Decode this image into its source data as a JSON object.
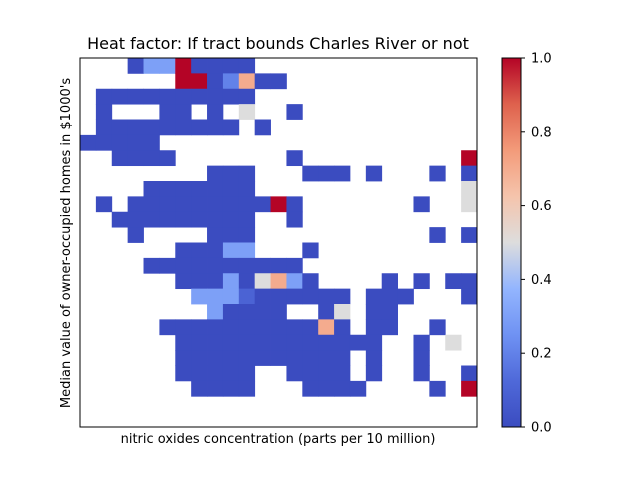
{
  "chart_data": {
    "type": "heatmap",
    "title": "Heat factor: If tract bounds Charles River or not",
    "xlabel": "nitric oxides concentration (parts per 10 million)",
    "ylabel": "Median value of owner-occupied homes in $1000's",
    "colormap": "coolwarm",
    "colormap_stops": [
      "#3b4cc0",
      "#dddddd",
      "#b40426"
    ],
    "vmin": 0.0,
    "vmax": 1.0,
    "colorbar_ticks": [
      "0.0",
      "0.2",
      "0.4",
      "0.6",
      "0.8",
      "1.0"
    ],
    "grid_cols": 25,
    "grid_rows": 24,
    "cells": [
      [
        3,
        0,
        0
      ],
      [
        4,
        0,
        0.3
      ],
      [
        5,
        0,
        0.3
      ],
      [
        6,
        0,
        1
      ],
      [
        7,
        0,
        0
      ],
      [
        8,
        0,
        0
      ],
      [
        9,
        0,
        0
      ],
      [
        10,
        0,
        0
      ],
      [
        6,
        1,
        1
      ],
      [
        7,
        1,
        1
      ],
      [
        8,
        1,
        0
      ],
      [
        9,
        1,
        0.2
      ],
      [
        10,
        1,
        0.7
      ],
      [
        11,
        1,
        0
      ],
      [
        12,
        1,
        0
      ],
      [
        1,
        2,
        0
      ],
      [
        2,
        2,
        0
      ],
      [
        3,
        2,
        0
      ],
      [
        4,
        2,
        0
      ],
      [
        5,
        2,
        0
      ],
      [
        6,
        2,
        0
      ],
      [
        7,
        2,
        0
      ],
      [
        8,
        2,
        0
      ],
      [
        9,
        2,
        0
      ],
      [
        10,
        2,
        0
      ],
      [
        1,
        3,
        0
      ],
      [
        5,
        3,
        0
      ],
      [
        6,
        3,
        0
      ],
      [
        8,
        3,
        0
      ],
      [
        10,
        3,
        0.5
      ],
      [
        13,
        3,
        0
      ],
      [
        1,
        4,
        0
      ],
      [
        2,
        4,
        0
      ],
      [
        3,
        4,
        0
      ],
      [
        4,
        4,
        0
      ],
      [
        5,
        4,
        0
      ],
      [
        6,
        4,
        0
      ],
      [
        7,
        4,
        0
      ],
      [
        8,
        4,
        0
      ],
      [
        9,
        4,
        0
      ],
      [
        11,
        4,
        0
      ],
      [
        0,
        5,
        0
      ],
      [
        1,
        5,
        0
      ],
      [
        2,
        5,
        0
      ],
      [
        3,
        5,
        0
      ],
      [
        4,
        5,
        0
      ],
      [
        2,
        6,
        0
      ],
      [
        3,
        6,
        0
      ],
      [
        4,
        6,
        0
      ],
      [
        5,
        6,
        0
      ],
      [
        13,
        6,
        0
      ],
      [
        24,
        6,
        1
      ],
      [
        8,
        7,
        0
      ],
      [
        9,
        7,
        0
      ],
      [
        10,
        7,
        0
      ],
      [
        14,
        7,
        0
      ],
      [
        15,
        7,
        0
      ],
      [
        16,
        7,
        0
      ],
      [
        18,
        7,
        0
      ],
      [
        22,
        7,
        0
      ],
      [
        24,
        7,
        0
      ],
      [
        4,
        8,
        0
      ],
      [
        5,
        8,
        0
      ],
      [
        6,
        8,
        0
      ],
      [
        7,
        8,
        0
      ],
      [
        8,
        8,
        0
      ],
      [
        9,
        8,
        0
      ],
      [
        10,
        8,
        0
      ],
      [
        24,
        8,
        0.5
      ],
      [
        1,
        9,
        0
      ],
      [
        3,
        9,
        0
      ],
      [
        4,
        9,
        0
      ],
      [
        5,
        9,
        0
      ],
      [
        6,
        9,
        0
      ],
      [
        7,
        9,
        0
      ],
      [
        8,
        9,
        0
      ],
      [
        9,
        9,
        0
      ],
      [
        10,
        9,
        0
      ],
      [
        11,
        9,
        0
      ],
      [
        12,
        9,
        1
      ],
      [
        13,
        9,
        0
      ],
      [
        21,
        9,
        0
      ],
      [
        24,
        9,
        0.5
      ],
      [
        2,
        10,
        0
      ],
      [
        3,
        10,
        0
      ],
      [
        4,
        10,
        0
      ],
      [
        5,
        10,
        0
      ],
      [
        6,
        10,
        0
      ],
      [
        7,
        10,
        0
      ],
      [
        8,
        10,
        0
      ],
      [
        9,
        10,
        0
      ],
      [
        10,
        10,
        0
      ],
      [
        13,
        10,
        0
      ],
      [
        3,
        11,
        0
      ],
      [
        8,
        11,
        0
      ],
      [
        9,
        11,
        0
      ],
      [
        10,
        11,
        0
      ],
      [
        22,
        11,
        0
      ],
      [
        24,
        11,
        0
      ],
      [
        6,
        12,
        0
      ],
      [
        7,
        12,
        0
      ],
      [
        8,
        12,
        0
      ],
      [
        9,
        12,
        0.3
      ],
      [
        10,
        12,
        0.3
      ],
      [
        14,
        12,
        0
      ],
      [
        4,
        13,
        0
      ],
      [
        5,
        13,
        0
      ],
      [
        6,
        13,
        0
      ],
      [
        7,
        13,
        0
      ],
      [
        8,
        13,
        0
      ],
      [
        9,
        13,
        0
      ],
      [
        10,
        13,
        0
      ],
      [
        11,
        13,
        0
      ],
      [
        12,
        13,
        0
      ],
      [
        13,
        13,
        0
      ],
      [
        6,
        14,
        0
      ],
      [
        7,
        14,
        0
      ],
      [
        8,
        14,
        0
      ],
      [
        9,
        14,
        0.3
      ],
      [
        10,
        14,
        0
      ],
      [
        11,
        14,
        0.5
      ],
      [
        12,
        14,
        0.7
      ],
      [
        13,
        14,
        0.3
      ],
      [
        14,
        14,
        0
      ],
      [
        19,
        14,
        0
      ],
      [
        21,
        14,
        0
      ],
      [
        23,
        14,
        0
      ],
      [
        24,
        14,
        0
      ],
      [
        7,
        15,
        0.3
      ],
      [
        8,
        15,
        0.3
      ],
      [
        9,
        15,
        0.3
      ],
      [
        10,
        15,
        0.1
      ],
      [
        11,
        15,
        0
      ],
      [
        12,
        15,
        0
      ],
      [
        13,
        15,
        0
      ],
      [
        14,
        15,
        0
      ],
      [
        15,
        15,
        0
      ],
      [
        16,
        15,
        0
      ],
      [
        18,
        15,
        0
      ],
      [
        19,
        15,
        0
      ],
      [
        20,
        15,
        0
      ],
      [
        24,
        15,
        0
      ],
      [
        8,
        16,
        0.3
      ],
      [
        9,
        16,
        0
      ],
      [
        10,
        16,
        0
      ],
      [
        11,
        16,
        0
      ],
      [
        12,
        16,
        0
      ],
      [
        15,
        16,
        0
      ],
      [
        16,
        16,
        0.5
      ],
      [
        18,
        16,
        0
      ],
      [
        19,
        16,
        0
      ],
      [
        5,
        17,
        0
      ],
      [
        6,
        17,
        0
      ],
      [
        7,
        17,
        0
      ],
      [
        8,
        17,
        0
      ],
      [
        9,
        17,
        0
      ],
      [
        10,
        17,
        0
      ],
      [
        11,
        17,
        0
      ],
      [
        12,
        17,
        0
      ],
      [
        13,
        17,
        0
      ],
      [
        14,
        17,
        0
      ],
      [
        15,
        17,
        0.7
      ],
      [
        16,
        17,
        0
      ],
      [
        18,
        17,
        0
      ],
      [
        19,
        17,
        0
      ],
      [
        22,
        17,
        0
      ],
      [
        6,
        18,
        0
      ],
      [
        7,
        18,
        0
      ],
      [
        8,
        18,
        0
      ],
      [
        9,
        18,
        0
      ],
      [
        10,
        18,
        0
      ],
      [
        11,
        18,
        0
      ],
      [
        12,
        18,
        0
      ],
      [
        13,
        18,
        0
      ],
      [
        14,
        18,
        0
      ],
      [
        15,
        18,
        0
      ],
      [
        16,
        18,
        0
      ],
      [
        17,
        18,
        0
      ],
      [
        18,
        18,
        0
      ],
      [
        21,
        18,
        0
      ],
      [
        23,
        18,
        0.5
      ],
      [
        6,
        19,
        0
      ],
      [
        7,
        19,
        0
      ],
      [
        8,
        19,
        0
      ],
      [
        9,
        19,
        0
      ],
      [
        10,
        19,
        0
      ],
      [
        11,
        19,
        0
      ],
      [
        12,
        19,
        0
      ],
      [
        13,
        19,
        0
      ],
      [
        14,
        19,
        0
      ],
      [
        15,
        19,
        0
      ],
      [
        16,
        19,
        0
      ],
      [
        18,
        19,
        0
      ],
      [
        21,
        19,
        0
      ],
      [
        6,
        20,
        0
      ],
      [
        7,
        20,
        0
      ],
      [
        8,
        20,
        0
      ],
      [
        9,
        20,
        0
      ],
      [
        10,
        20,
        0
      ],
      [
        13,
        20,
        0
      ],
      [
        14,
        20,
        0
      ],
      [
        15,
        20,
        0
      ],
      [
        16,
        20,
        0
      ],
      [
        18,
        20,
        0
      ],
      [
        21,
        20,
        0
      ],
      [
        24,
        20,
        0
      ],
      [
        7,
        21,
        0
      ],
      [
        8,
        21,
        0
      ],
      [
        9,
        21,
        0
      ],
      [
        10,
        21,
        0
      ],
      [
        14,
        21,
        0
      ],
      [
        15,
        21,
        0
      ],
      [
        16,
        21,
        0
      ],
      [
        17,
        21,
        0
      ],
      [
        22,
        21,
        0
      ],
      [
        24,
        21,
        1
      ]
    ]
  }
}
